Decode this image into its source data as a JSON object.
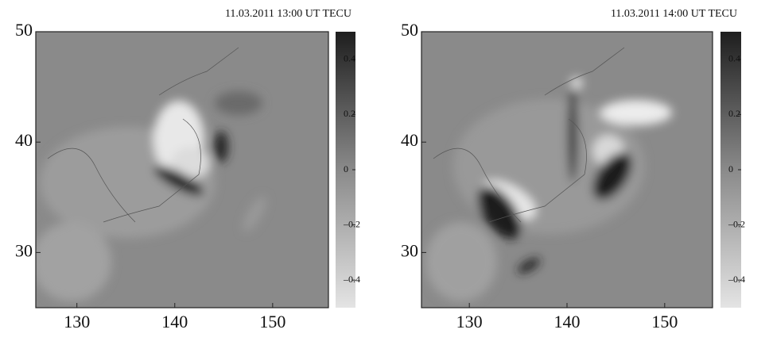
{
  "chart_data": [
    {
      "type": "heatmap",
      "title": "11.03.2011 13:00 UT TECU",
      "xlim": [
        125.8,
        155.7
      ],
      "ylim": [
        25,
        50
      ],
      "xticks": [
        130,
        140,
        150
      ],
      "yticks": [
        30,
        40,
        50
      ],
      "clim": [
        -0.5,
        0.5
      ],
      "cticks": [
        {
          "value": -0.4,
          "label": "–0.4"
        },
        {
          "value": -0.2,
          "label": "–0.2"
        },
        0,
        0.2,
        0.4
      ]
    },
    {
      "type": "heatmap",
      "title": "11.03.2011 14:00 UT TECU",
      "xlim": [
        125.1,
        154.9
      ],
      "ylim": [
        25,
        50
      ],
      "xticks": [
        130,
        140,
        150
      ],
      "yticks": [
        30,
        40,
        50
      ],
      "clim": [
        -0.5,
        0.5
      ],
      "cticks": [
        {
          "value": -0.4,
          "label": "–0.4"
        },
        {
          "value": -0.2,
          "label": "–0.2"
        },
        0,
        0.2,
        0.4
      ]
    }
  ]
}
